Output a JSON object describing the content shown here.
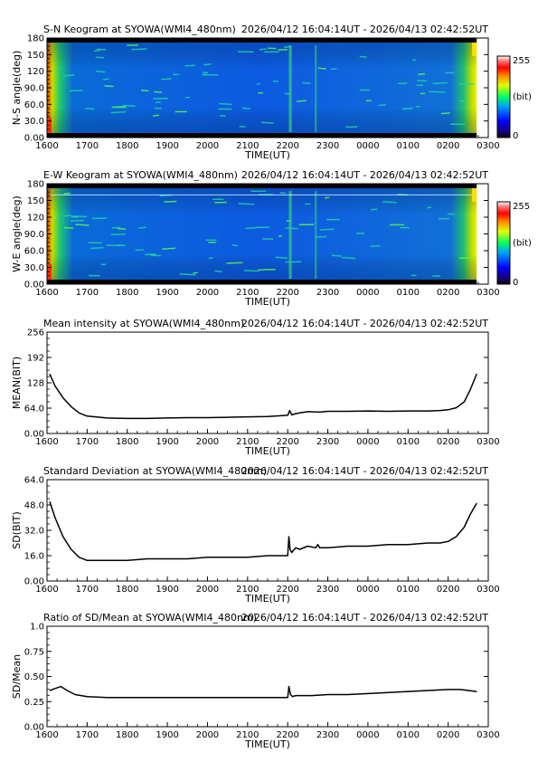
{
  "time_range": "2026/04/12 16:04:14UT - 2026/04/13 02:42:52UT",
  "x_ticks": [
    "1600",
    "1700",
    "1800",
    "1900",
    "2000",
    "2100",
    "2200",
    "2300",
    "0000",
    "0100",
    "0200",
    "0300"
  ],
  "xlabel": "TIME(UT)",
  "colorbar": {
    "max_label": "255",
    "unit_label": "(bit)",
    "min_label": "0"
  },
  "chart_data": [
    {
      "type": "heatmap",
      "title": "S-N Keogram at SYOWA(WMI4_480nm)",
      "ylabel": "N-S angle(deg)",
      "yticks": [
        "0.00",
        "30.0",
        "60.0",
        "90.0",
        "120",
        "150",
        "180"
      ],
      "ylim": [
        0,
        180
      ],
      "xlabel": "TIME(UT)",
      "value_range": [
        0,
        255
      ]
    },
    {
      "type": "heatmap",
      "title": "E-W Keogram at SYOWA(WMI4_480nm)",
      "ylabel": "W-E angle(deg)",
      "yticks": [
        "0.00",
        "30.0",
        "60.0",
        "90.0",
        "120",
        "150",
        "180"
      ],
      "ylim": [
        0,
        180
      ],
      "xlabel": "TIME(UT)",
      "value_range": [
        0,
        255
      ]
    },
    {
      "type": "line",
      "title": "Mean intensity at SYOWA(WMI4_480nm)",
      "ylabel": "MEAN(BIT)",
      "yticks": [
        "0.00",
        "64.0",
        "128",
        "192",
        "256"
      ],
      "ylim": [
        0,
        256
      ],
      "xlabel": "TIME(UT)",
      "x": [
        16.07,
        16.2,
        16.4,
        16.6,
        16.8,
        17.0,
        17.5,
        18.0,
        18.5,
        19.0,
        19.5,
        20.0,
        20.5,
        21.0,
        21.5,
        22.0,
        22.05,
        22.1,
        22.2,
        22.3,
        22.5,
        22.8,
        23.0,
        23.5,
        24.0,
        24.5,
        25.0,
        25.5,
        25.8,
        26.0,
        26.2,
        26.4,
        26.55,
        26.71
      ],
      "y": [
        150,
        120,
        90,
        68,
        52,
        44,
        39,
        38,
        38,
        39,
        40,
        40,
        41,
        42,
        43,
        46,
        58,
        47,
        50,
        52,
        55,
        54,
        56,
        56,
        57,
        56,
        57,
        57,
        58,
        60,
        65,
        80,
        110,
        150
      ]
    },
    {
      "type": "line",
      "title": "Standard Deviation at SYOWA(WMI4_480nm)",
      "ylabel": "SD(BIT)",
      "yticks": [
        "0.00",
        "16.0",
        "32.0",
        "48.0",
        "64.0"
      ],
      "ylim": [
        0,
        64
      ],
      "xlabel": "TIME(UT)",
      "x": [
        16.07,
        16.2,
        16.4,
        16.6,
        16.8,
        17.0,
        17.5,
        18.0,
        18.5,
        19.0,
        19.5,
        20.0,
        20.5,
        21.0,
        21.5,
        22.0,
        22.03,
        22.06,
        22.1,
        22.2,
        22.3,
        22.5,
        22.7,
        22.75,
        22.8,
        23.0,
        23.5,
        24.0,
        24.5,
        25.0,
        25.5,
        25.8,
        26.0,
        26.2,
        26.4,
        26.55,
        26.71
      ],
      "y": [
        50,
        40,
        28,
        20,
        15,
        13,
        13,
        13,
        14,
        14,
        14,
        15,
        15,
        15,
        16,
        16,
        28,
        20,
        18,
        21,
        20,
        22,
        21,
        23,
        21,
        21,
        22,
        22,
        23,
        23,
        24,
        24,
        25,
        28,
        34,
        42,
        49
      ]
    },
    {
      "type": "line",
      "title": "Ratio of SD/Mean at SYOWA(WMI4_480nm)",
      "ylabel": "SD/Mean",
      "yticks": [
        "0.00",
        "0.25",
        "0.50",
        "0.75",
        "1.0"
      ],
      "ylim": [
        0,
        1
      ],
      "xlabel": "TIME(UT)",
      "x": [
        16.07,
        16.2,
        16.35,
        16.5,
        16.7,
        17.0,
        17.5,
        18.0,
        18.5,
        19.0,
        19.5,
        20.0,
        20.5,
        21.0,
        21.5,
        22.0,
        22.03,
        22.07,
        22.12,
        22.2,
        22.4,
        22.6,
        23.0,
        23.5,
        24.0,
        24.5,
        25.0,
        25.5,
        26.0,
        26.3,
        26.71
      ],
      "y": [
        0.36,
        0.38,
        0.4,
        0.36,
        0.32,
        0.3,
        0.29,
        0.29,
        0.29,
        0.29,
        0.29,
        0.29,
        0.29,
        0.29,
        0.29,
        0.29,
        0.4,
        0.32,
        0.3,
        0.31,
        0.31,
        0.31,
        0.32,
        0.32,
        0.33,
        0.34,
        0.35,
        0.36,
        0.37,
        0.37,
        0.35
      ]
    }
  ]
}
